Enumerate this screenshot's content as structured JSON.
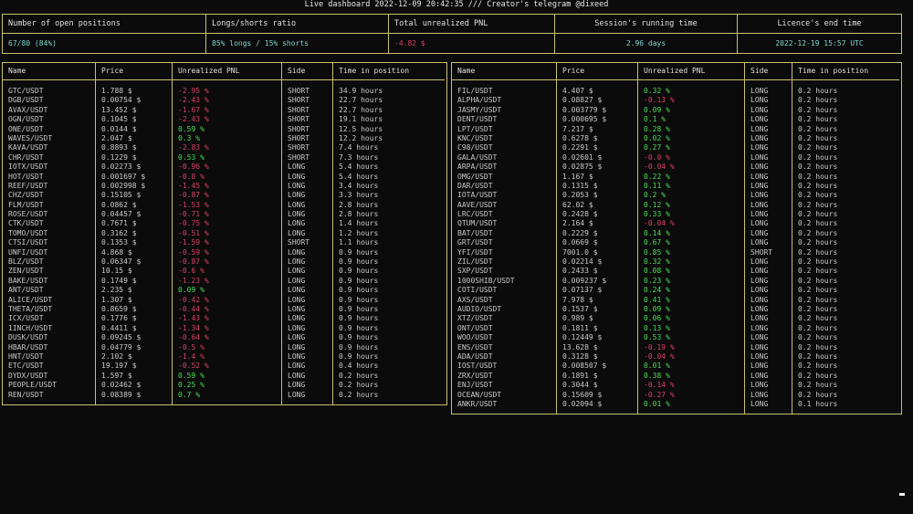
{
  "header": {
    "title": "Live dashboard 2022-12-09 20:42:35 /// Creator's telegram @dixeed"
  },
  "summary": [
    {
      "label": "Number of open positions",
      "value": "67/80 (84%)",
      "color": "#7fd6cf"
    },
    {
      "label": "Longs/shorts ratio",
      "value": "85% longs / 15% shorts",
      "color": "#7fd6cf"
    },
    {
      "label": "Total unrealized PNL",
      "value": "-4.82 $",
      "color": "#d9416a"
    },
    {
      "label": "Session's running time",
      "value": "2.96 days",
      "color": "#7fd6cf"
    },
    {
      "label": "Licence's end time",
      "value": "2022-12-19 15:57 UTC",
      "color": "#7fd6cf"
    }
  ],
  "columns": [
    "Name",
    "Price",
    "Unrealized PNL",
    "Side",
    "Time in position"
  ],
  "left_table": [
    [
      "GTC/USDT",
      "1.788 $",
      "-2.95 %",
      "SHORT",
      "34.9 hours"
    ],
    [
      "DGB/USDT",
      "0.00754 $",
      "-2.43 %",
      "SHORT",
      "22.7 hours"
    ],
    [
      "AVAX/USDT",
      "13.452 $",
      "-1.67 %",
      "SHORT",
      "22.7 hours"
    ],
    [
      "OGN/USDT",
      "0.1045 $",
      "-2.43 %",
      "SHORT",
      "19.1 hours"
    ],
    [
      "ONE/USDT",
      "0.0144 $",
      "0.59 %",
      "SHORT",
      "12.5 hours"
    ],
    [
      "WAVES/USDT",
      "2.047 $",
      "0.3 %",
      "SHORT",
      "12.2 hours"
    ],
    [
      "KAVA/USDT",
      "0.8893 $",
      "-2.83 %",
      "SHORT",
      "7.4 hours"
    ],
    [
      "CHR/USDT",
      "0.1229 $",
      "0.53 %",
      "SHORT",
      "7.3 hours"
    ],
    [
      "IOTX/USDT",
      "0.02273 $",
      "-0.96 %",
      "LONG",
      "5.4 hours"
    ],
    [
      "HOT/USDT",
      "0.001697 $",
      "-0.8 %",
      "LONG",
      "5.4 hours"
    ],
    [
      "REEF/USDT",
      "0.002998 $",
      "-1.45 %",
      "LONG",
      "3.4 hours"
    ],
    [
      "CHZ/USDT",
      "0.15105 $",
      "-0.87 %",
      "LONG",
      "3.3 hours"
    ],
    [
      "FLM/USDT",
      "0.0862 $",
      "-1.53 %",
      "LONG",
      "2.8 hours"
    ],
    [
      "ROSE/USDT",
      "0.04457 $",
      "-0.71 %",
      "LONG",
      "2.8 hours"
    ],
    [
      "CTK/USDT",
      "0.7671 $",
      "-0.75 %",
      "LONG",
      "1.4 hours"
    ],
    [
      "TOMO/USDT",
      "0.3162 $",
      "-0.51 %",
      "LONG",
      "1.2 hours"
    ],
    [
      "CTSI/USDT",
      "0.1353 $",
      "-1.59 %",
      "SHORT",
      "1.1 hours"
    ],
    [
      "UNFI/USDT",
      "4.868 $",
      "-0.59 %",
      "LONG",
      "0.9 hours"
    ],
    [
      "BLZ/USDT",
      "0.06347 $",
      "-0.87 %",
      "LONG",
      "0.9 hours"
    ],
    [
      "ZEN/USDT",
      "10.15 $",
      "-0.6 %",
      "LONG",
      "0.9 hours"
    ],
    [
      "BAKE/USDT",
      "0.1749 $",
      "-1.23 %",
      "LONG",
      "0.9 hours"
    ],
    [
      "ANT/USDT",
      "2.235 $",
      "0.09 %",
      "LONG",
      "0.9 hours"
    ],
    [
      "ALICE/USDT",
      "1.307 $",
      "-0.42 %",
      "LONG",
      "0.9 hours"
    ],
    [
      "THETA/USDT",
      "0.8659 $",
      "-0.44 %",
      "LONG",
      "0.9 hours"
    ],
    [
      "ICX/USDT",
      "0.1776 $",
      "-1.43 %",
      "LONG",
      "0.9 hours"
    ],
    [
      "1INCH/USDT",
      "0.4411 $",
      "-1.34 %",
      "LONG",
      "0.9 hours"
    ],
    [
      "DUSK/USDT",
      "0.09245 $",
      "-0.64 %",
      "LONG",
      "0.9 hours"
    ],
    [
      "HBAR/USDT",
      "0.04779 $",
      "-0.5 %",
      "LONG",
      "0.9 hours"
    ],
    [
      "HNT/USDT",
      "2.102 $",
      "-1.4 %",
      "LONG",
      "0.9 hours"
    ],
    [
      "ETC/USDT",
      "19.197 $",
      "-0.52 %",
      "LONG",
      "0.4 hours"
    ],
    [
      "DYDX/USDT",
      "1.597 $",
      "0.59 %",
      "LONG",
      "0.2 hours"
    ],
    [
      "PEOPLE/USDT",
      "0.02462 $",
      "0.25 %",
      "LONG",
      "0.2 hours"
    ],
    [
      "REN/USDT",
      "0.08389 $",
      "0.7 %",
      "LONG",
      "0.2 hours"
    ]
  ],
  "right_table": [
    [
      "FIL/USDT",
      "4.407 $",
      "0.32 %",
      "LONG",
      "0.2 hours"
    ],
    [
      "ALPHA/USDT",
      "0.08827 $",
      "-0.13 %",
      "LONG",
      "0.2 hours"
    ],
    [
      "JASMY/USDT",
      "0.003779 $",
      "0.09 %",
      "LONG",
      "0.2 hours"
    ],
    [
      "DENT/USDT",
      "0.000695 $",
      "0.1 %",
      "LONG",
      "0.2 hours"
    ],
    [
      "LPT/USDT",
      "7.217 $",
      "0.28 %",
      "LONG",
      "0.2 hours"
    ],
    [
      "KNC/USDT",
      "0.6278 $",
      "0.02 %",
      "LONG",
      "0.2 hours"
    ],
    [
      "C98/USDT",
      "0.2291 $",
      "0.27 %",
      "LONG",
      "0.2 hours"
    ],
    [
      "GALA/USDT",
      "0.02601 $",
      "-0.0 %",
      "LONG",
      "0.2 hours"
    ],
    [
      "ARPA/USDT",
      "0.02875 $",
      "-0.04 %",
      "LONG",
      "0.2 hours"
    ],
    [
      "OMG/USDT",
      "1.167 $",
      "0.22 %",
      "LONG",
      "0.2 hours"
    ],
    [
      "DAR/USDT",
      "0.1315 $",
      "0.11 %",
      "LONG",
      "0.2 hours"
    ],
    [
      "IOTA/USDT",
      "0.2053 $",
      "0.2 %",
      "LONG",
      "0.2 hours"
    ],
    [
      "AAVE/USDT",
      "62.02 $",
      "0.12 %",
      "LONG",
      "0.2 hours"
    ],
    [
      "LRC/USDT",
      "0.2428 $",
      "0.33 %",
      "LONG",
      "0.2 hours"
    ],
    [
      "QTUM/USDT",
      "2.164 $",
      "-0.04 %",
      "LONG",
      "0.2 hours"
    ],
    [
      "BAT/USDT",
      "0.2229 $",
      "0.14 %",
      "LONG",
      "0.2 hours"
    ],
    [
      "GRT/USDT",
      "0.0669 $",
      "0.67 %",
      "LONG",
      "0.2 hours"
    ],
    [
      "YFI/USDT",
      "7001.0 $",
      "0.85 %",
      "SHORT",
      "0.2 hours"
    ],
    [
      "ZIL/USDT",
      "0.02214 $",
      "0.32 %",
      "LONG",
      "0.2 hours"
    ],
    [
      "SXP/USDT",
      "0.2433 $",
      "0.08 %",
      "LONG",
      "0.2 hours"
    ],
    [
      "1000SHIB/USDT",
      "0.009237 $",
      "0.23 %",
      "LONG",
      "0.2 hours"
    ],
    [
      "COTI/USDT",
      "0.07137 $",
      "0.24 %",
      "LONG",
      "0.2 hours"
    ],
    [
      "AXS/USDT",
      "7.978 $",
      "0.41 %",
      "LONG",
      "0.2 hours"
    ],
    [
      "AUDIO/USDT",
      "0.1537 $",
      "0.09 %",
      "LONG",
      "0.2 hours"
    ],
    [
      "XTZ/USDT",
      "0.989 $",
      "0.06 %",
      "LONG",
      "0.2 hours"
    ],
    [
      "ONT/USDT",
      "0.1811 $",
      "0.13 %",
      "LONG",
      "0.2 hours"
    ],
    [
      "WOO/USDT",
      "0.12449 $",
      "0.53 %",
      "LONG",
      "0.2 hours"
    ],
    [
      "ENS/USDT",
      "13.628 $",
      "-0.19 %",
      "LONG",
      "0.2 hours"
    ],
    [
      "ADA/USDT",
      "0.3128 $",
      "-0.04 %",
      "LONG",
      "0.2 hours"
    ],
    [
      "IOST/USDT",
      "0.008507 $",
      "0.01 %",
      "LONG",
      "0.2 hours"
    ],
    [
      "ZRX/USDT",
      "0.1891 $",
      "0.38 %",
      "LONG",
      "0.2 hours"
    ],
    [
      "ENJ/USDT",
      "0.3044 $",
      "-0.14 %",
      "LONG",
      "0.2 hours"
    ],
    [
      "OCEAN/USDT",
      "0.15609 $",
      "-0.27 %",
      "LONG",
      "0.2 hours"
    ],
    [
      "ANKR/USDT",
      "0.02094 $",
      "0.01 %",
      "LONG",
      "0.1 hours"
    ]
  ],
  "colors": {
    "positive": "#4ddc5a",
    "negative": "#d9416a",
    "accent": "#7fd6cf",
    "border": "#c8c070"
  }
}
